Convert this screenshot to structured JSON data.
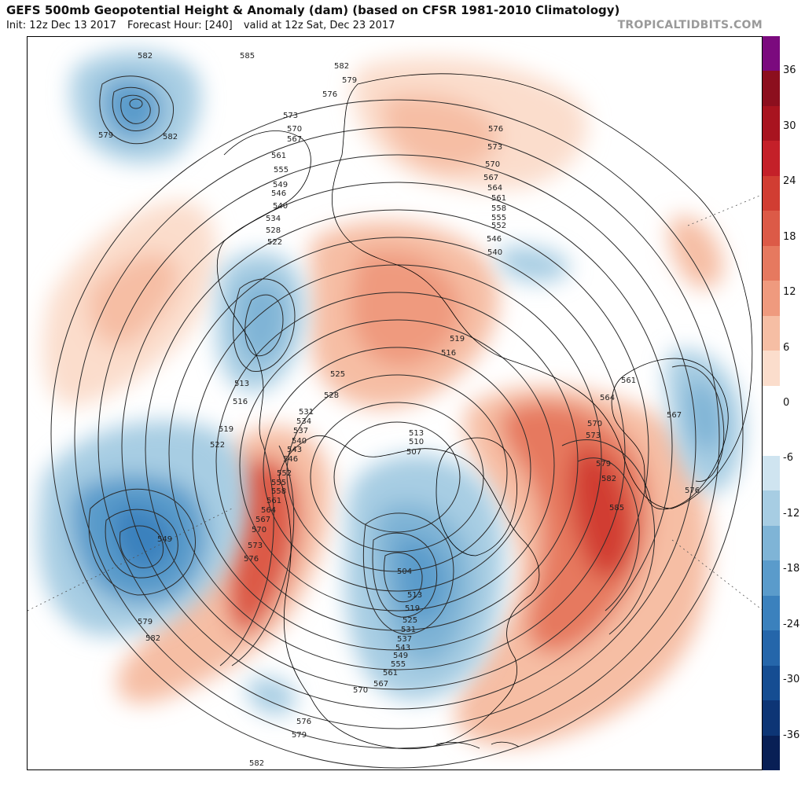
{
  "header": {
    "title": "GEFS 500mb Geopotential Height & Anomaly (dam) (based on CFSR 1981-2010 Climatology)",
    "init": "Init: 12z Dec 13 2017",
    "forecast_hour": "Forecast Hour: [240]",
    "valid": "valid at 12z Sat, Dec 23 2017",
    "brand": "TROPICALTIDBITS.COM"
  },
  "colorbar": {
    "ticks": [
      "36",
      "30",
      "24",
      "18",
      "12",
      "6",
      "0",
      "-6",
      "-12",
      "-18",
      "-24",
      "-30",
      "-36"
    ],
    "colors": [
      "#7b0a7e",
      "#8c0f1e",
      "#a8141f",
      "#c42029",
      "#d13d32",
      "#dc5a47",
      "#e6795f",
      "#ef9a7e",
      "#f6bea4",
      "#fbddcc",
      "#ffffff",
      "#ffffff",
      "#cfe4f0",
      "#a7cde3",
      "#7fb4d6",
      "#5a9bcb",
      "#3b81bd",
      "#2566aa",
      "#154d92",
      "#0d3575",
      "#081f55"
    ]
  },
  "map": {
    "description": "Northern Hemisphere polar stereographic 500mb height contours with anomaly shading",
    "contour_labels": [
      "582",
      "585",
      "582",
      "579",
      "576",
      "573",
      "570",
      "567",
      "561",
      "555",
      "549",
      "546",
      "540",
      "534",
      "528",
      "522",
      "582",
      "579",
      "576",
      "573",
      "570",
      "567",
      "564",
      "561",
      "558",
      "555",
      "552",
      "546",
      "540",
      "519",
      "516",
      "525",
      "528",
      "531",
      "534",
      "537",
      "540",
      "543",
      "546",
      "552",
      "555",
      "558",
      "561",
      "564",
      "567",
      "570",
      "573",
      "576",
      "513",
      "516",
      "519",
      "522",
      "549",
      "579",
      "582",
      "513",
      "510",
      "507",
      "504",
      "513",
      "519",
      "525",
      "531",
      "537",
      "543",
      "549",
      "555",
      "561",
      "567",
      "570",
      "576",
      "579",
      "582",
      "561",
      "564",
      "567",
      "570",
      "573",
      "579",
      "582",
      "585",
      "576"
    ]
  }
}
